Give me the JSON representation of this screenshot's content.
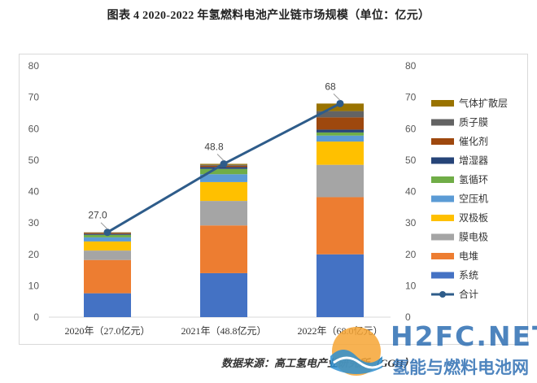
{
  "title": "图表 4  2020-2022 年氢燃料电池产业链市场规模（单位：亿元）",
  "source": "数据来源：高工氢电产业研究所（GGII）",
  "watermark": {
    "brand": "H2FC.NET",
    "sub": "氢能与燃料电池网"
  },
  "chart_data": {
    "type": "bar",
    "stacked": true,
    "categories": [
      "2020年（27.0亿元）",
      "2021年（48.8亿元）",
      "2022年（68.0亿元）"
    ],
    "series": [
      {
        "name": "系统",
        "color": "#4472c4",
        "values": [
          7.6,
          14.0,
          20.0
        ]
      },
      {
        "name": "电堆",
        "color": "#ed7d31",
        "values": [
          10.6,
          15.2,
          18.2
        ]
      },
      {
        "name": "膜电极",
        "color": "#a5a5a5",
        "values": [
          3.0,
          7.8,
          10.3
        ]
      },
      {
        "name": "双极板",
        "color": "#ffc000",
        "values": [
          2.9,
          6.0,
          7.4
        ]
      },
      {
        "name": "空压机",
        "color": "#5b9bd5",
        "values": [
          1.3,
          2.5,
          1.9
        ]
      },
      {
        "name": "氢循环",
        "color": "#70ad47",
        "values": [
          0.8,
          1.7,
          1.0
        ]
      },
      {
        "name": "增湿器",
        "color": "#264478",
        "values": [
          0.3,
          0.6,
          0.9
        ]
      },
      {
        "name": "催化剂",
        "color": "#9e480e",
        "values": [
          0.3,
          0.4,
          3.9
        ]
      },
      {
        "name": "质子膜",
        "color": "#636363",
        "values": [
          0.1,
          0.3,
          2.0
        ]
      },
      {
        "name": "气体扩散层",
        "color": "#997300",
        "values": [
          0.1,
          0.3,
          2.4
        ]
      }
    ],
    "line": {
      "name": "合计",
      "color": "#2e5c8a",
      "values": [
        27.0,
        48.8,
        68.0
      ],
      "labels": [
        "27.0",
        "48.8",
        "68"
      ]
    },
    "y_ticks": [
      "0",
      "10",
      "20",
      "30",
      "40",
      "50",
      "60",
      "70",
      "80"
    ],
    "ylim": [
      0,
      80
    ],
    "grid": false,
    "legend_position": "right"
  }
}
